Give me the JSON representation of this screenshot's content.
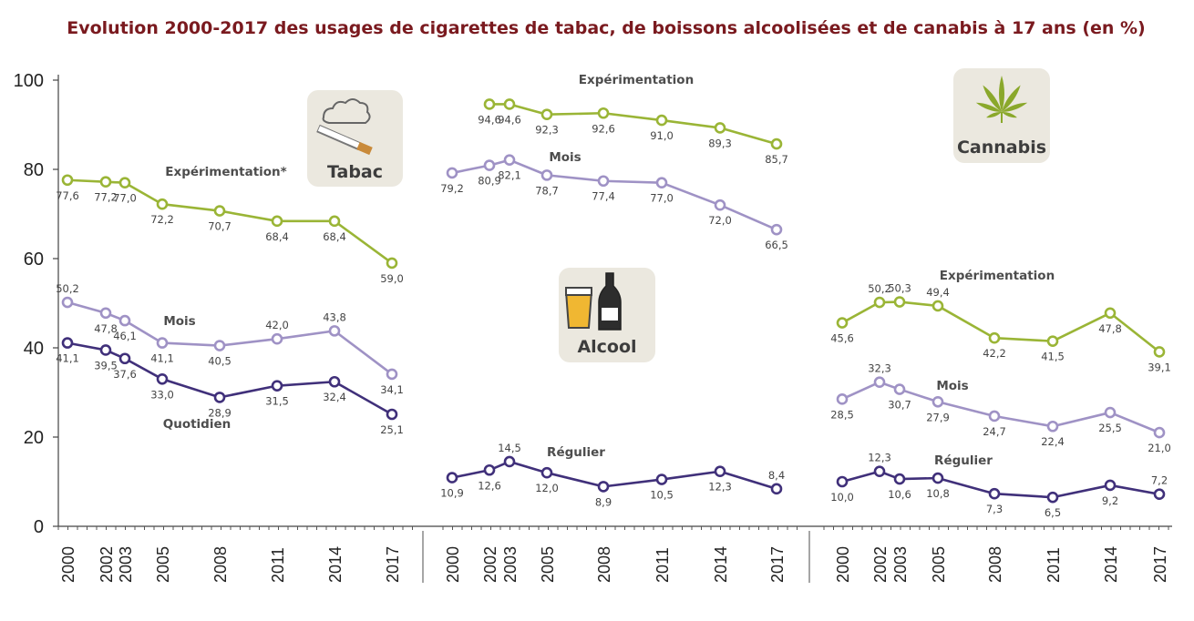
{
  "title": "Evolution 2000-2017 des usages de cigarettes de tabac, de boissons alcoolisées et de canabis à 17 ans (en %)",
  "colors": {
    "green": "#9ab536",
    "lavender": "#9f92c5",
    "purple": "#40307a",
    "title": "#7a1a1f",
    "badge_bg": "#ebe8df"
  },
  "chart_data": {
    "type": "line",
    "ylim": [
      0,
      100
    ],
    "yticks": [
      0,
      20,
      40,
      60,
      80,
      100
    ],
    "x": [
      "2000",
      "2002",
      "2003",
      "2005",
      "2008",
      "2011",
      "2014",
      "2017"
    ],
    "panels": [
      {
        "name": "Tabac",
        "icon": "cigarette-icon",
        "series": [
          {
            "name": "Expérimentation*",
            "color": "green",
            "values": [
              77.6,
              77.2,
              77.0,
              72.2,
              70.7,
              68.4,
              68.4,
              59.0
            ],
            "labels": [
              "77,6",
              "77,2",
              "77,0",
              "72,2",
              "70,7",
              "68,4",
              "68,4",
              "59,0"
            ]
          },
          {
            "name": "Mois",
            "color": "lavender",
            "values": [
              50.2,
              47.8,
              46.1,
              41.1,
              40.5,
              42.0,
              43.8,
              34.1
            ],
            "labels": [
              "50,2",
              "47,8",
              "46,1",
              "41,1",
              "40,5",
              "42,0",
              "43,8",
              "34,1"
            ]
          },
          {
            "name": "Quotidien",
            "color": "purple",
            "values": [
              41.1,
              39.5,
              37.6,
              33.0,
              28.9,
              31.5,
              32.4,
              25.1
            ],
            "labels": [
              "41,1",
              "39,5",
              "37,6",
              "33,0",
              "28,9",
              "31,5",
              "32,4",
              "25,1"
            ]
          }
        ]
      },
      {
        "name": "Alcool",
        "icon": "beer-bottle-icon",
        "series": [
          {
            "name": "Expérimentation",
            "color": "green",
            "values": [
              null,
              94.6,
              94.6,
              92.3,
              92.6,
              91.0,
              89.3,
              85.7
            ],
            "labels": [
              "",
              "94,6",
              "94,6",
              "92,3",
              "92,6",
              "91,0",
              "89,3",
              "85,7"
            ]
          },
          {
            "name": "Mois",
            "color": "lavender",
            "values": [
              79.2,
              80.9,
              82.1,
              78.7,
              77.4,
              77.0,
              72.0,
              66.5
            ],
            "labels": [
              "79,2",
              "80,9",
              "82,1",
              "78,7",
              "77,4",
              "77,0",
              "72,0",
              "66,5"
            ]
          },
          {
            "name": "Régulier",
            "color": "purple",
            "values": [
              10.9,
              12.6,
              14.5,
              12.0,
              8.9,
              10.5,
              12.3,
              8.4
            ],
            "labels": [
              "10,9",
              "12,6",
              "14,5",
              "12,0",
              "8,9",
              "10,5",
              "12,3",
              "8,4"
            ]
          }
        ]
      },
      {
        "name": "Cannabis",
        "icon": "cannabis-leaf-icon",
        "series": [
          {
            "name": "Expérimentation",
            "color": "green",
            "values": [
              45.6,
              50.2,
              50.3,
              49.4,
              42.2,
              41.5,
              47.8,
              39.1
            ],
            "labels": [
              "45,6",
              "50,2",
              "50,3",
              "49,4",
              "42,2",
              "41,5",
              "47,8",
              "39,1"
            ]
          },
          {
            "name": "Mois",
            "color": "lavender",
            "values": [
              28.5,
              32.3,
              30.7,
              27.9,
              24.7,
              22.4,
              25.5,
              21.0
            ],
            "labels": [
              "28,5",
              "32,3",
              "30,7",
              "27,9",
              "24,7",
              "22,4",
              "25,5",
              "21,0"
            ]
          },
          {
            "name": "Régulier",
            "color": "purple",
            "values": [
              10.0,
              12.3,
              10.6,
              10.8,
              7.3,
              6.5,
              9.2,
              7.2
            ],
            "labels": [
              "10,0",
              "12,3",
              "10,6",
              "10,8",
              "7,3",
              "6,5",
              "9,2",
              "7,2"
            ]
          }
        ]
      }
    ]
  }
}
